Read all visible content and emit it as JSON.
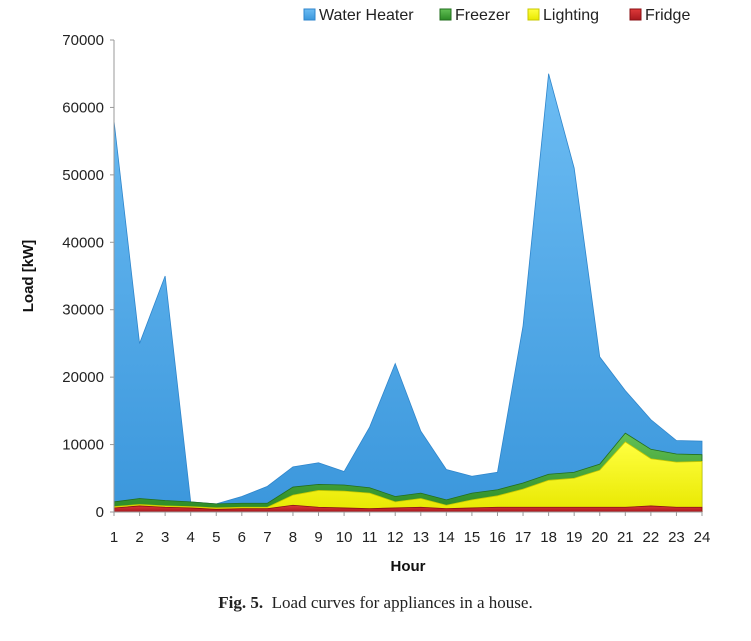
{
  "caption": {
    "label": "Fig. 5.",
    "text": "Load curves for appliances in a house."
  },
  "chart_data": {
    "type": "area",
    "stacked": true,
    "xlabel": "Hour",
    "ylabel": "Load [kW]",
    "ylim": [
      0,
      70000
    ],
    "yticks": [
      0,
      10000,
      20000,
      30000,
      40000,
      50000,
      60000,
      70000
    ],
    "x": [
      1,
      2,
      3,
      4,
      5,
      6,
      7,
      8,
      9,
      10,
      11,
      12,
      13,
      14,
      15,
      16,
      17,
      18,
      19,
      20,
      21,
      22,
      23,
      24
    ],
    "legend_position": "top-right",
    "grid": false,
    "series": [
      {
        "name": "Fridge",
        "color": "#c0232a",
        "values": [
          600,
          900,
          700,
          600,
          400,
          500,
          500,
          1000,
          700,
          600,
          500,
          600,
          700,
          500,
          600,
          700,
          700,
          700,
          700,
          700,
          700,
          900,
          700,
          700
        ]
      },
      {
        "name": "Lighting",
        "color": "#f5f500",
        "values": [
          200,
          200,
          200,
          200,
          200,
          200,
          200,
          1500,
          2500,
          2500,
          2300,
          900,
          1300,
          500,
          1200,
          1700,
          2700,
          4000,
          4300,
          5500,
          9700,
          7000,
          6700,
          6800
        ]
      },
      {
        "name": "Freezer",
        "color": "#3a9a2f",
        "values": [
          700,
          900,
          800,
          700,
          600,
          600,
          600,
          1200,
          900,
          900,
          800,
          800,
          800,
          800,
          1000,
          900,
          900,
          900,
          900,
          900,
          1300,
          1400,
          1200,
          1000
        ]
      },
      {
        "name": "Water Heater",
        "color": "#4aa6e8",
        "values": [
          56500,
          23000,
          33300,
          0,
          0,
          1000,
          2500,
          3000,
          3200,
          2000,
          9000,
          19700,
          9200,
          4500,
          2500,
          2600,
          23300,
          59400,
          45100,
          15900,
          6300,
          4400,
          2000,
          2000
        ]
      }
    ],
    "legend_order": [
      "Water Heater",
      "Freezer",
      "Lighting",
      "Fridge"
    ]
  }
}
